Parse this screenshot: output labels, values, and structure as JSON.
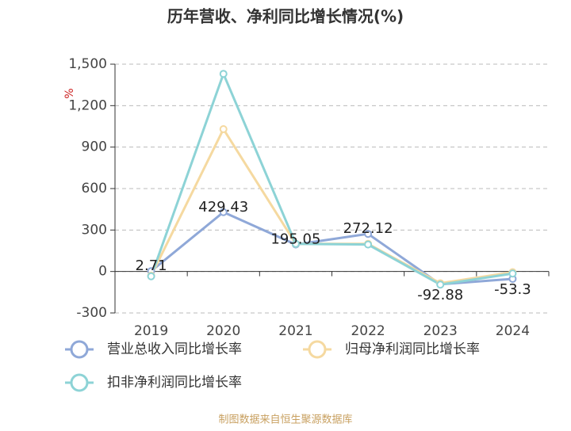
{
  "chart_data": {
    "type": "line",
    "title": "历年营收、净利同比增长情况(%)",
    "y_label": "%",
    "categories": [
      "2019",
      "2020",
      "2021",
      "2022",
      "2023",
      "2024"
    ],
    "series": [
      {
        "name": "营业总收入同比增长率",
        "color": "#8fa8d8",
        "values": [
          2.71,
          429.43,
          195.05,
          272.12,
          -92.88,
          -53.3
        ],
        "show_labels": true
      },
      {
        "name": "归母净利润同比增长率",
        "color": "#f5d9a0",
        "values": [
          -30,
          1030,
          200,
          200,
          -85,
          -5
        ]
      },
      {
        "name": "扣非净利润同比增长率",
        "color": "#8dd3d6",
        "values": [
          -35,
          1430,
          200,
          195,
          -95,
          -15
        ]
      }
    ],
    "ylim": [
      -300,
      1500
    ],
    "yticks": [
      -300,
      0,
      300,
      600,
      900,
      {
        "value": 1200,
        "label": "1,200"
      },
      {
        "value": 1500,
        "label": "1,500"
      }
    ],
    "grid": true,
    "source": "制图数据来自恒生聚源数据库"
  }
}
